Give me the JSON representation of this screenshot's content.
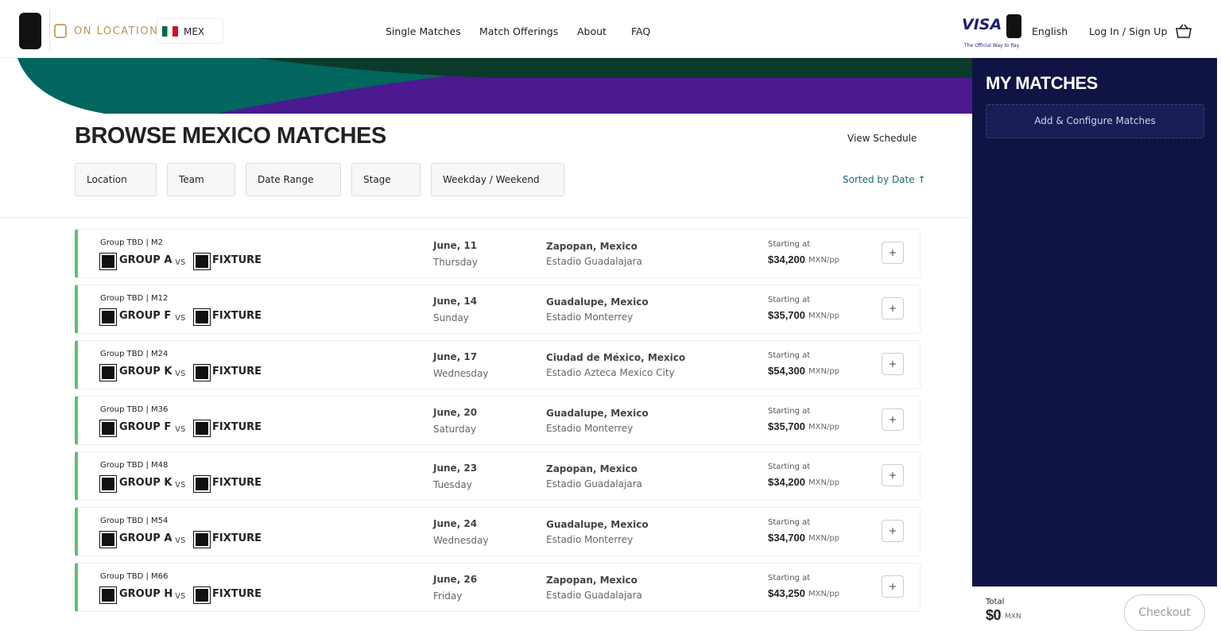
{
  "header": {
    "brand": "ON LOCATION",
    "country": "MEX",
    "nav": [
      "Single Matches",
      "Match Offerings",
      "About",
      "FAQ"
    ],
    "visa": "VISA",
    "visa_tagline": "The Official Way to Pay",
    "language": "English",
    "login": "Log In / Sign Up"
  },
  "browse": {
    "title": "BROWSE MEXICO MATCHES",
    "view_schedule": "View Schedule",
    "filters": [
      "Location",
      "Team",
      "Date Range",
      "Stage",
      "Weekday / Weekend"
    ],
    "sort": "Sorted by Date ↑"
  },
  "labels": {
    "vs": "vs",
    "starting": "Starting at",
    "unit": "MXN/pp"
  },
  "matches": [
    {
      "group_label": "Group TBD | M2",
      "home": "GROUP A",
      "away": "FIXTURE",
      "date": "June, 11",
      "weekday": "Thursday",
      "city": "Zapopan, Mexico",
      "venue": "Estadio Guadalajara",
      "price": "$34,200"
    },
    {
      "group_label": "Group TBD | M12",
      "home": "GROUP F",
      "away": "FIXTURE",
      "date": "June, 14",
      "weekday": "Sunday",
      "city": "Guadalupe, Mexico",
      "venue": "Estadio Monterrey",
      "price": "$35,700"
    },
    {
      "group_label": "Group TBD | M24",
      "home": "GROUP K",
      "away": "FIXTURE",
      "date": "June, 17",
      "weekday": "Wednesday",
      "city": "Ciudad de México, Mexico",
      "venue": "Estadio Azteca Mexico City",
      "price": "$54,300"
    },
    {
      "group_label": "Group TBD | M36",
      "home": "GROUP F",
      "away": "FIXTURE",
      "date": "June, 20",
      "weekday": "Saturday",
      "city": "Guadalupe, Mexico",
      "venue": "Estadio Monterrey",
      "price": "$35,700"
    },
    {
      "group_label": "Group TBD | M48",
      "home": "GROUP K",
      "away": "FIXTURE",
      "date": "June, 23",
      "weekday": "Tuesday",
      "city": "Zapopan, Mexico",
      "venue": "Estadio Guadalajara",
      "price": "$34,200"
    },
    {
      "group_label": "Group TBD | M54",
      "home": "GROUP A",
      "away": "FIXTURE",
      "date": "June, 24",
      "weekday": "Wednesday",
      "city": "Guadalupe, Mexico",
      "venue": "Estadio Monterrey",
      "price": "$34,700"
    },
    {
      "group_label": "Group TBD | M66",
      "home": "GROUP H",
      "away": "FIXTURE",
      "date": "June, 26",
      "weekday": "Friday",
      "city": "Zapopan, Mexico",
      "venue": "Estadio Guadalajara",
      "price": "$43,250"
    }
  ],
  "sidebar": {
    "title": "MY MATCHES",
    "add": "Add & Configure Matches",
    "total_label": "Total",
    "total": "$0",
    "currency": "MXN",
    "checkout": "Checkout"
  }
}
